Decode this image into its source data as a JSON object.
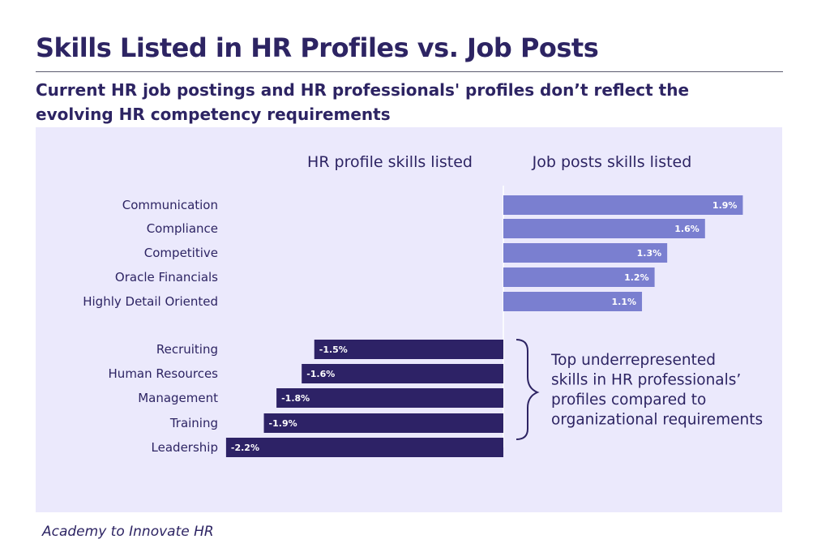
{
  "header": {
    "title": "Skills Listed in HR Profiles vs. Job Posts",
    "subtitle": "Current HR job postings and HR professionals' profiles don’t reflect the evolving HR competency requirements"
  },
  "footer": {
    "source": "Academy to Innovate HR"
  },
  "colors": {
    "panel_bg": "#ebe9fc",
    "positive_bar": "#7a7fd0",
    "negative_bar": "#2d2266",
    "text": "#2d2463"
  },
  "chart_data": {
    "type": "bar",
    "orientation": "horizontal",
    "column_headers": [
      "HR profile skills listed",
      "Job posts skills listed"
    ],
    "categories": [
      "Communication",
      "Compliance",
      "Competitive",
      "Oracle Financials",
      "Highly Detail Oriented",
      "Recruiting",
      "Human Resources",
      "Management",
      "Training",
      "Leadership"
    ],
    "values": [
      1.9,
      1.6,
      1.3,
      1.2,
      1.1,
      -1.5,
      -1.6,
      -1.8,
      -1.9,
      -2.2
    ],
    "value_labels": [
      "1.9%",
      "1.6%",
      "1.3%",
      "1.2%",
      "1.1%",
      "-1.5%",
      "-1.6%",
      "-1.8%",
      "-1.9%",
      "-2.2%"
    ],
    "unit": "%",
    "xlim": [
      -2.2,
      1.9
    ],
    "grid": false,
    "annotation": "Top underrepresented skills in HR professionals’ profiles compared to organizational requirements",
    "annotation_lines": [
      "Top underrepresented",
      "skills in HR professionals’",
      "profiles compared to",
      "organizational requirements"
    ]
  }
}
